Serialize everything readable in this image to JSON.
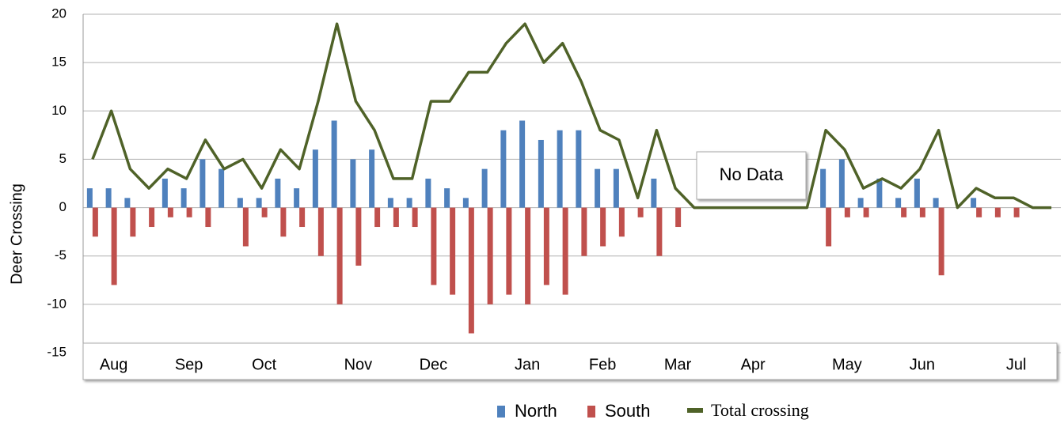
{
  "chart_data": {
    "type": "bar-line",
    "y_label": "Deer Crossing",
    "annotation": "No Data",
    "categories": [
      null,
      "Aug",
      null,
      null,
      null,
      "Sep",
      null,
      null,
      null,
      "Oct",
      null,
      null,
      null,
      null,
      "Nov",
      null,
      null,
      null,
      "Dec",
      null,
      null,
      null,
      null,
      "Jan",
      null,
      null,
      null,
      "Feb",
      null,
      null,
      null,
      "Mar",
      null,
      null,
      null,
      "Apr",
      null,
      null,
      null,
      null,
      "May",
      null,
      null,
      null,
      "Jun",
      null,
      null,
      null,
      null,
      "Jul",
      null,
      null
    ],
    "series": [
      {
        "name": "North",
        "type": "bar",
        "color": "#4f81bd",
        "values": [
          2,
          2,
          1,
          0,
          3,
          2,
          5,
          4,
          1,
          1,
          3,
          2,
          6,
          9,
          5,
          6,
          1,
          1,
          3,
          2,
          1,
          4,
          8,
          9,
          7,
          8,
          8,
          4,
          4,
          0,
          3,
          0,
          null,
          null,
          null,
          null,
          null,
          null,
          null,
          4,
          5,
          1,
          3,
          1,
          3,
          1,
          0,
          1,
          0,
          0,
          0,
          0
        ]
      },
      {
        "name": "South",
        "type": "bar",
        "color": "#c0504d",
        "values": [
          -3,
          -8,
          -3,
          -2,
          -1,
          -1,
          -2,
          0,
          -4,
          -1,
          -3,
          -2,
          -5,
          -10,
          -6,
          -2,
          -2,
          -2,
          -8,
          -9,
          -13,
          -10,
          -9,
          -10,
          -8,
          -9,
          -5,
          -4,
          -3,
          -1,
          -5,
          -2,
          null,
          null,
          null,
          null,
          null,
          null,
          null,
          -4,
          -1,
          -1,
          0,
          -1,
          -1,
          -7,
          0,
          -1,
          -1,
          -1,
          0,
          0
        ]
      },
      {
        "name": "Total crossing",
        "type": "line",
        "color": "#4f6228",
        "values": [
          5,
          10,
          4,
          2,
          4,
          3,
          7,
          4,
          5,
          2,
          6,
          4,
          11,
          19,
          11,
          8,
          3,
          3,
          11,
          11,
          14,
          14,
          17,
          19,
          15,
          17,
          13,
          8,
          7,
          1,
          8,
          2,
          0,
          0,
          0,
          0,
          0,
          0,
          0,
          8,
          6,
          2,
          3,
          2,
          4,
          8,
          0,
          2,
          1,
          1,
          0,
          0
        ]
      }
    ],
    "ylim": [
      -15,
      20
    ],
    "yticks": [
      -15,
      -10,
      -5,
      0,
      5,
      10,
      15,
      20
    ],
    "grid": true
  }
}
